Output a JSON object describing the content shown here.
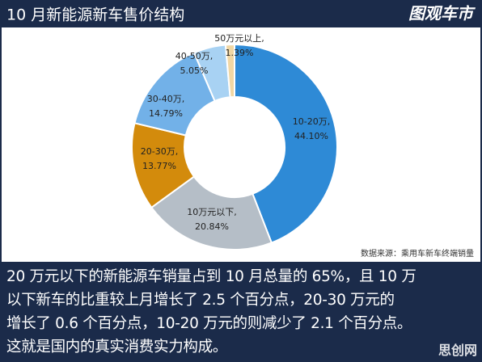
{
  "chart_data": {
    "type": "donut",
    "title": "10 月新能源新车售价结构",
    "source": "数据来源：乘用车新车终端销量",
    "categories": [
      "10-20万,",
      "10万元以下,",
      "20-30万,",
      "30-40万,",
      "40-50万,",
      "50万元以上,"
    ],
    "values": [
      44.1,
      20.84,
      13.77,
      14.79,
      5.05,
      1.39
    ],
    "value_labels": [
      "44.10%",
      "20.84%",
      "13.77%",
      "14.79%",
      "5.05%",
      "1.39%"
    ],
    "colors": [
      "#2e8ad6",
      "#b5bec7",
      "#d38b0c",
      "#72b1e8",
      "#a8d2f3",
      "#f1d7a4"
    ]
  },
  "header": {
    "logo": "图观车市"
  },
  "body": {
    "lines": [
      "20 万元以下的新能源车销量占到 10 月总量的 65%，且 10 万",
      "以下新车的比重较上月增长了 2.5 个百分点，20-30 万元的",
      "增长了 0.6 个百分点，10-20 万元的则减少了 2.1 个百分点。",
      "这就是国内的真实消费实力构成。"
    ]
  },
  "watermark": "思创网"
}
